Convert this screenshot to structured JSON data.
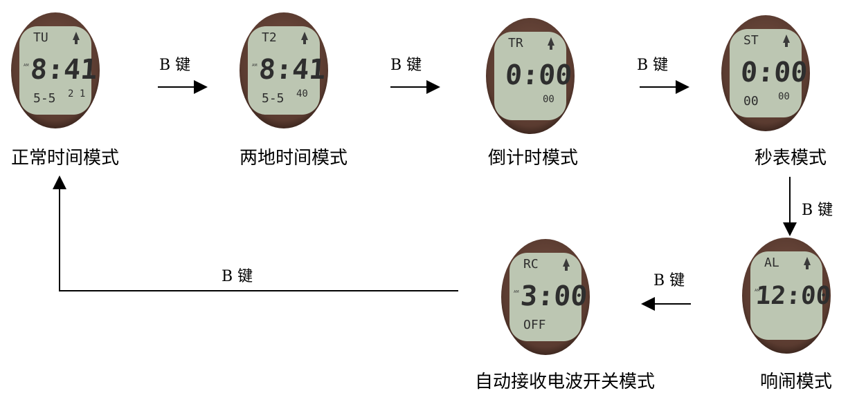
{
  "button_label": "B 键",
  "modes": [
    {
      "id": "normal",
      "caption": "正常时间模式",
      "lcd": {
        "mode": "TU",
        "am": "AM",
        "main": "8:41",
        "bottom": "5-5",
        "corner": "2 1"
      }
    },
    {
      "id": "dual",
      "caption": "两地时间模式",
      "lcd": {
        "mode": "T2",
        "am": "AM",
        "main": "8:41",
        "bottom": "5-5",
        "corner": "40"
      }
    },
    {
      "id": "timer",
      "caption": "倒计时模式",
      "lcd": {
        "mode": "TR",
        "am": "",
        "main": "0:00",
        "bottom": "",
        "corner": "00"
      }
    },
    {
      "id": "stopwatch",
      "caption": "秒表模式",
      "lcd": {
        "mode": "ST",
        "am": "",
        "main": "0:00",
        "bottom": "00",
        "corner": "00"
      }
    },
    {
      "id": "alarm",
      "caption": "响闹模式",
      "lcd": {
        "mode": "AL",
        "am": "AM",
        "main": "12:00",
        "bottom": "",
        "corner": ""
      }
    },
    {
      "id": "rc",
      "caption": "自动接收电波开关模式",
      "lcd": {
        "mode": "RC",
        "am": "AM",
        "main": "3:00",
        "bottom": "OFF",
        "corner": ""
      }
    }
  ],
  "colors": {
    "lcd_bg": "#bcc6b2",
    "bezel": "#5a3b30",
    "segment": "#2e2e2e"
  }
}
